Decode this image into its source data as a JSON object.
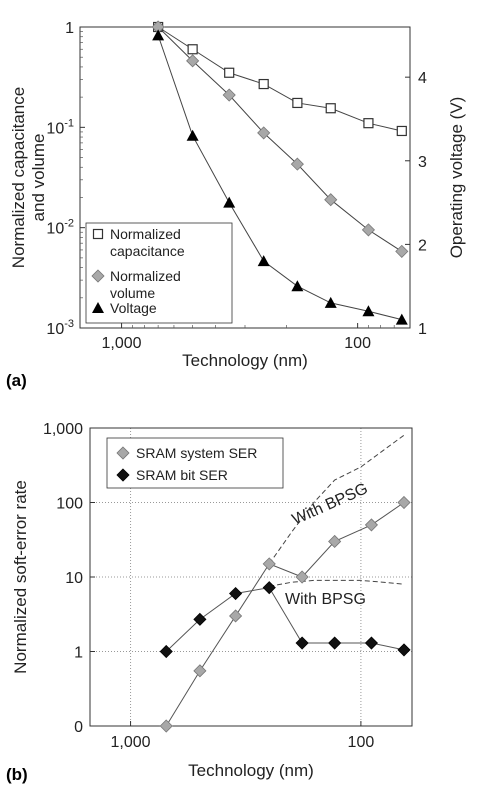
{
  "chart_data": [
    {
      "type": "line",
      "panel_label": "(a)",
      "xlabel": "Technology (nm)",
      "ylabel": "Normalized capacitance and volume",
      "y2label": "Operating voltage (V)",
      "x_scale": "log-reversed",
      "xlim": [
        1500,
        60
      ],
      "x_ticks": [
        {
          "value": 1000,
          "label": "1,000"
        },
        {
          "value": 100,
          "label": "100"
        }
      ],
      "y_scale": "log",
      "ylim": [
        0.001,
        1
      ],
      "y_ticks": [
        {
          "value": 1,
          "label": "1"
        },
        {
          "value": 0.1,
          "label": "10",
          "exp": "-1"
        },
        {
          "value": 0.01,
          "label": "10",
          "exp": "-2"
        },
        {
          "value": 0.001,
          "label": "10",
          "exp": "-3"
        }
      ],
      "y2lim": [
        1,
        4.6
      ],
      "y2_ticks": [
        {
          "value": 1,
          "label": "1"
        },
        {
          "value": 2,
          "label": "2"
        },
        {
          "value": 3,
          "label": "3"
        },
        {
          "value": 4,
          "label": "4"
        }
      ],
      "legend_position": "bottom-left",
      "series": [
        {
          "name": "Normalized capacitance",
          "axis": "left",
          "marker": "open-square",
          "x": [
            700,
            500,
            350,
            250,
            180,
            130,
            90,
            65
          ],
          "y": [
            1,
            0.6,
            0.35,
            0.27,
            0.175,
            0.155,
            0.11,
            0.092
          ]
        },
        {
          "name": "Normalized volume",
          "axis": "left",
          "marker": "gray-diamond",
          "x": [
            700,
            500,
            350,
            250,
            180,
            130,
            90,
            65
          ],
          "y": [
            1,
            0.46,
            0.21,
            0.088,
            0.043,
            0.019,
            0.0095,
            0.0058
          ]
        },
        {
          "name": "Voltage",
          "axis": "right",
          "marker": "black-triangle",
          "x": [
            700,
            500,
            350,
            250,
            180,
            130,
            90,
            65
          ],
          "y": [
            4.5,
            3.3,
            2.5,
            1.8,
            1.5,
            1.3,
            1.2,
            1.1
          ]
        }
      ]
    },
    {
      "type": "line",
      "panel_label": "(b)",
      "xlabel": "Technology (nm)",
      "ylabel": "Normalized soft-error rate",
      "x_scale": "log-reversed",
      "xlim": [
        1500,
        60
      ],
      "x_ticks": [
        {
          "value": 1000,
          "label": "1,000"
        },
        {
          "value": 100,
          "label": "100"
        }
      ],
      "y_scale": "log",
      "ylim": [
        0.1,
        1000
      ],
      "y_ticks": [
        {
          "value": 1000,
          "label": "1,000"
        },
        {
          "value": 100,
          "label": "100"
        },
        {
          "value": 10,
          "label": "10"
        },
        {
          "value": 1,
          "label": "1"
        },
        {
          "value": 0.1,
          "label": "0"
        }
      ],
      "grid": true,
      "legend_position": "top-left",
      "series": [
        {
          "name": "SRAM system SER",
          "marker": "gray-diamond",
          "x": [
            700,
            500,
            350,
            250,
            180,
            130,
            90,
            65
          ],
          "y": [
            0.1,
            0.55,
            3,
            15,
            10,
            30,
            50,
            100
          ]
        },
        {
          "name": "SRAM bit SER",
          "marker": "black-diamond",
          "x": [
            700,
            500,
            350,
            250,
            180,
            130,
            90,
            65
          ],
          "y": [
            1,
            2.7,
            6,
            7.2,
            1.3,
            1.3,
            1.3,
            1.05
          ]
        }
      ],
      "dashed_curves": [
        {
          "label": "With BPSG",
          "x": [
            250,
            200,
            160,
            130,
            100,
            80,
            65
          ],
          "y": [
            15,
            40,
            100,
            200,
            300,
            500,
            800
          ]
        },
        {
          "label": "With BPSG",
          "x": [
            250,
            200,
            160,
            130,
            100,
            80,
            65
          ],
          "y": [
            7.5,
            8.5,
            9,
            9,
            9,
            8.5,
            8
          ]
        }
      ]
    }
  ]
}
